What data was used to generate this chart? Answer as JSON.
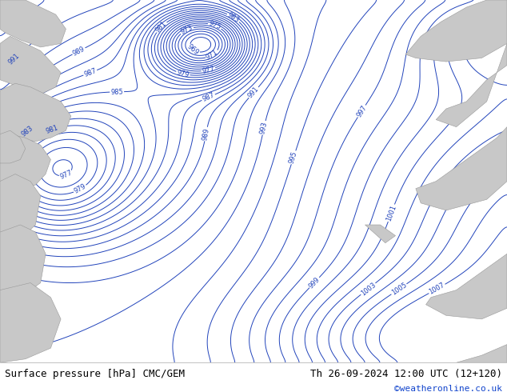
{
  "title_left": "Surface pressure [hPa] CMC/GEM",
  "title_right": "Th 26-09-2024 12:00 UTC (12+120)",
  "credit": "©weatheronline.co.uk",
  "background_color": "#c8eaab",
  "land_color_gray": "#c8c8c8",
  "sea_color": "#c8eaab",
  "contour_color": "#2244bb",
  "bottom_bar_color": "#ffffff",
  "bottom_text_color": "#000000",
  "credit_color": "#1144cc",
  "fig_width": 6.34,
  "fig_height": 4.9,
  "dpi": 100,
  "font_size_bottom": 9,
  "font_size_labels": 6,
  "font_size_credit": 8
}
